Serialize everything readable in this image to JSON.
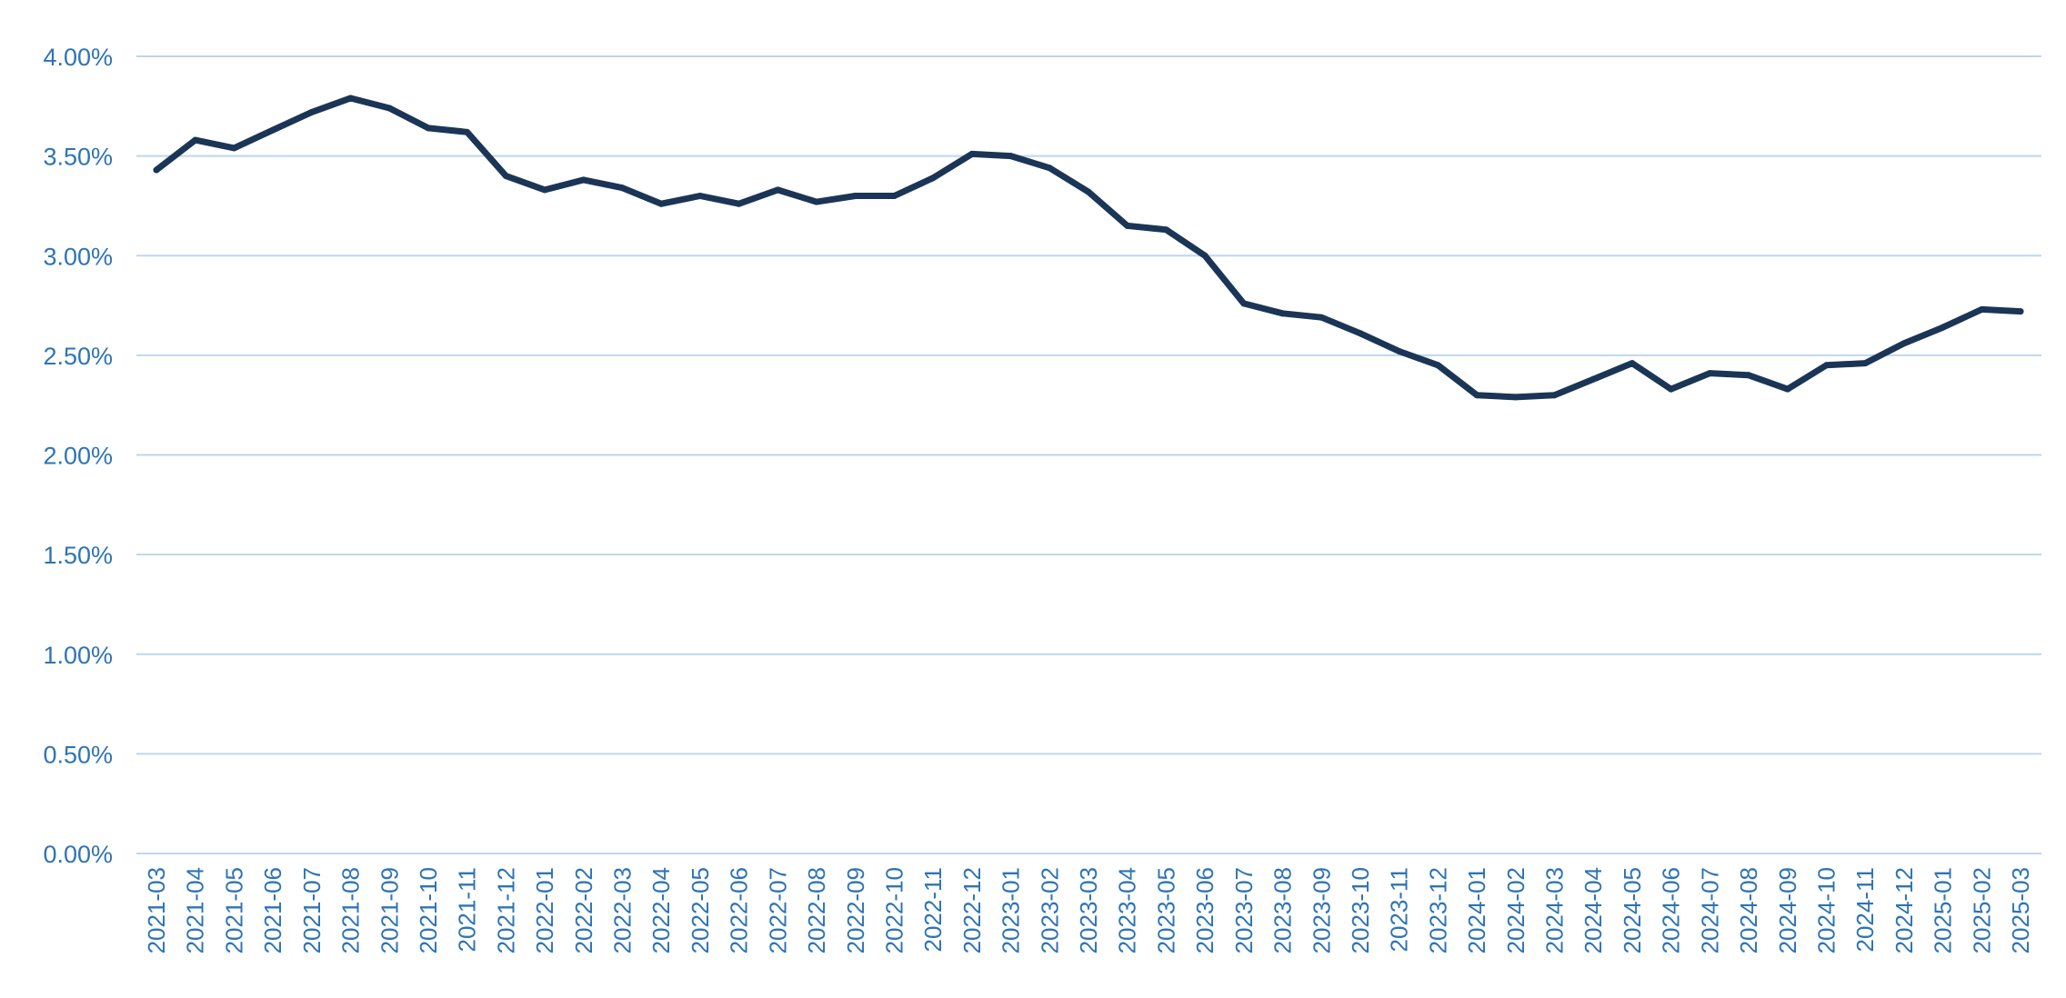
{
  "chart_data": {
    "type": "line",
    "title": "",
    "xlabel": "",
    "ylabel": "",
    "ylim": [
      0,
      4.0
    ],
    "y_tick_step": 0.5,
    "y_tick_format": "percent_2dp",
    "grid": "horizontal",
    "legend": "none",
    "colors": {
      "line": "#1b3556",
      "grid": "#bdd7ee",
      "axis_text": "#2e74b5"
    },
    "x": [
      "2021-03",
      "2021-04",
      "2021-05",
      "2021-06",
      "2021-07",
      "2021-08",
      "2021-09",
      "2021-10",
      "2021-11",
      "2021-12",
      "2022-01",
      "2022-02",
      "2022-03",
      "2022-04",
      "2022-05",
      "2022-06",
      "2022-07",
      "2022-08",
      "2022-09",
      "2022-10",
      "2022-11",
      "2022-12",
      "2023-01",
      "2023-02",
      "2023-03",
      "2023-04",
      "2023-05",
      "2023-06",
      "2023-07",
      "2023-08",
      "2023-09",
      "2023-10",
      "2023-11",
      "2023-12",
      "2024-01",
      "2024-02",
      "2024-03",
      "2024-04",
      "2024-05",
      "2024-06",
      "2024-07",
      "2024-08",
      "2024-09",
      "2024-10",
      "2024-11",
      "2024-12",
      "2025-01",
      "2025-02",
      "2025-03"
    ],
    "series": [
      {
        "values": [
          3.43,
          3.58,
          3.54,
          3.63,
          3.72,
          3.79,
          3.74,
          3.64,
          3.62,
          3.4,
          3.33,
          3.38,
          3.34,
          3.26,
          3.3,
          3.26,
          3.33,
          3.27,
          3.3,
          3.3,
          3.39,
          3.51,
          3.5,
          3.44,
          3.32,
          3.15,
          3.13,
          3.0,
          2.76,
          2.71,
          2.69,
          2.61,
          2.52,
          2.45,
          2.3,
          2.29,
          2.3,
          2.38,
          2.46,
          2.33,
          2.41,
          2.4,
          2.33,
          2.45,
          2.46,
          2.56,
          2.64,
          2.73,
          2.72
        ]
      }
    ]
  }
}
